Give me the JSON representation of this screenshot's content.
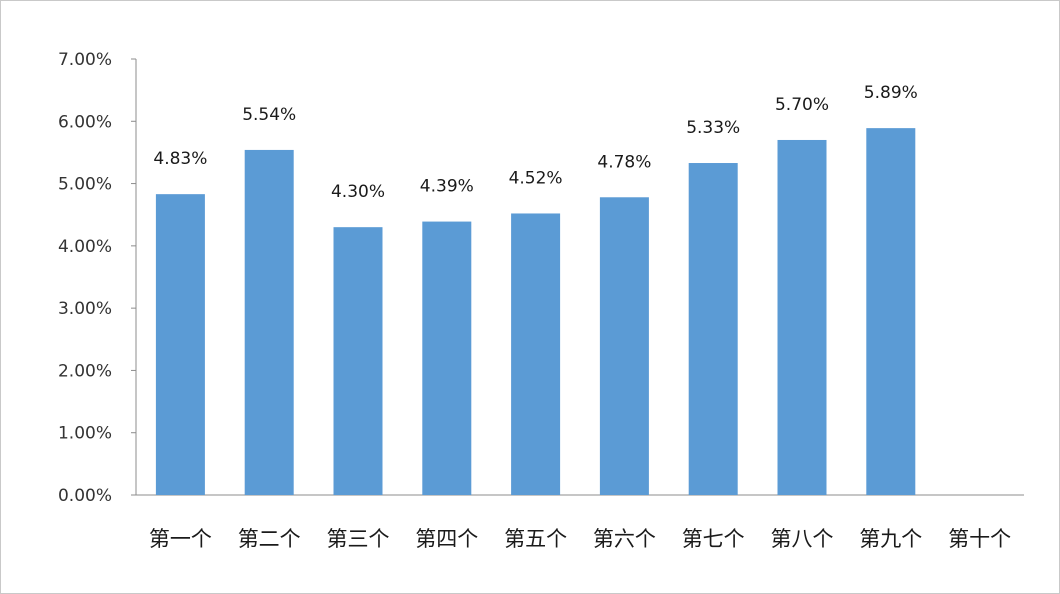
{
  "chart_data": {
    "type": "bar",
    "categories": [
      "第一个",
      "第二个",
      "第三个",
      "第四个",
      "第五个",
      "第六个",
      "第七个",
      "第八个",
      "第九个",
      "第十个"
    ],
    "values": [
      4.83,
      5.54,
      4.3,
      4.39,
      4.52,
      4.78,
      5.33,
      5.7,
      5.89,
      null
    ],
    "data_labels": [
      "4.83%",
      "5.54%",
      "4.30%",
      "4.39%",
      "4.52%",
      "4.78%",
      "5.33%",
      "5.70%",
      "5.89%",
      ""
    ],
    "y_ticks": [
      "0.00%",
      "1.00%",
      "2.00%",
      "3.00%",
      "4.00%",
      "5.00%",
      "6.00%",
      "7.00%"
    ],
    "ylim": [
      0,
      7
    ],
    "title": "",
    "xlabel": "",
    "ylabel": "",
    "grid": false,
    "legend": "none",
    "colors": {
      "bar": "#5b9bd5",
      "axis": "#8c8c8c",
      "text": "#1a1a1a"
    }
  }
}
